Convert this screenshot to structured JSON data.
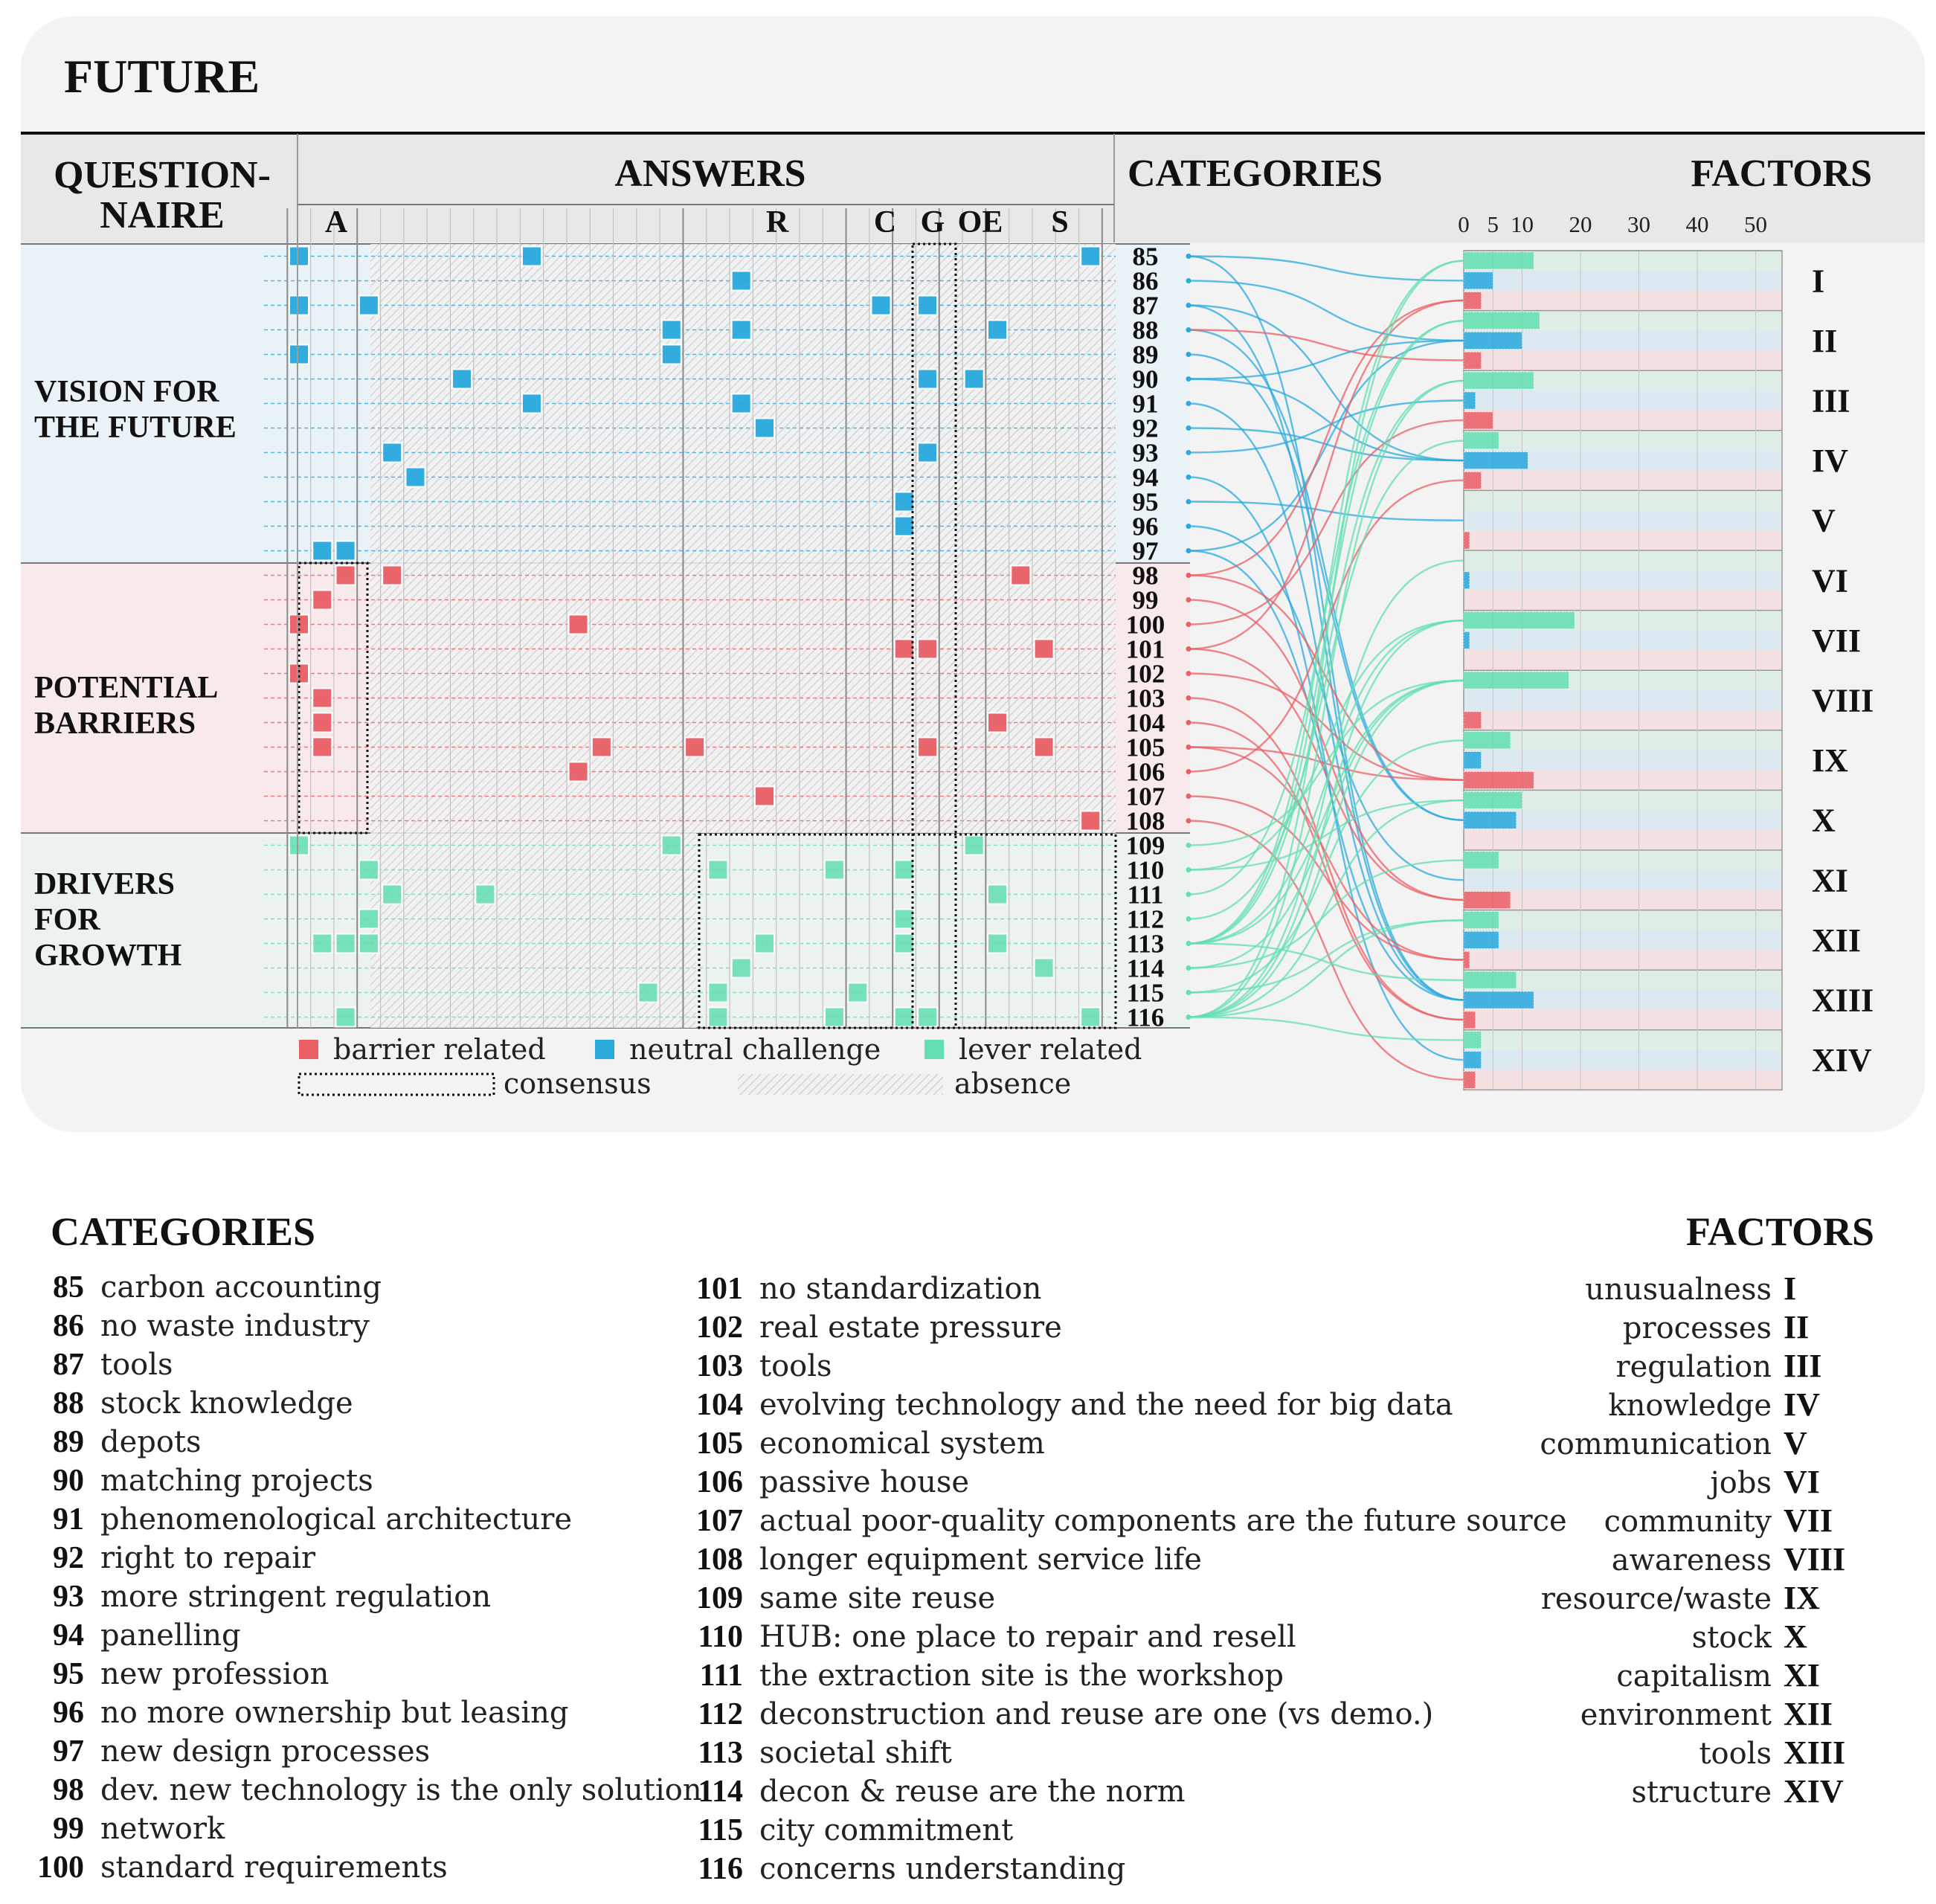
{
  "title": "FUTURE",
  "headers": {
    "questionnaire": [
      "QUESTION-",
      "NAIRE"
    ],
    "answers": "ANSWERS",
    "categories": "CATEGORIES",
    "factors": "FACTORS"
  },
  "answer_groups": [
    "A",
    "R",
    "C",
    "G",
    "OE",
    "S"
  ],
  "sections": [
    {
      "label": [
        "VISION FOR",
        "THE FUTURE"
      ],
      "color": "#e9f2f7"
    },
    {
      "label": [
        "POTENTIAL",
        "BARRIERS"
      ],
      "color": "#f8e9ea"
    },
    {
      "label": [
        "DRIVERS",
        "FOR",
        "GROWTH"
      ],
      "color": "#ecf3ee"
    }
  ],
  "colors": {
    "barrier": "#ea5f66",
    "neutral": "#29a9de",
    "lever": "#63dfb1"
  },
  "legend": {
    "barrier": "barrier related",
    "neutral": "neutral challenge",
    "lever": "lever related",
    "consensus": "consensus",
    "absence": "absence"
  },
  "axis_ticks": [
    "0",
    "5",
    "10",
    "20",
    "30",
    "40",
    "50"
  ],
  "factor_numerals": [
    "I",
    "II",
    "III",
    "IV",
    "V",
    "VI",
    "VII",
    "VIII",
    "IX",
    "X",
    "XI",
    "XII",
    "XIII",
    "XIV"
  ],
  "category_numbers": [
    "85",
    "86",
    "87",
    "88",
    "89",
    "90",
    "91",
    "92",
    "93",
    "94",
    "95",
    "96",
    "97",
    "98",
    "99",
    "100",
    "101",
    "102",
    "103",
    "104",
    "105",
    "106",
    "107",
    "108",
    "109",
    "110",
    "111",
    "112",
    "113",
    "114",
    "115",
    "116"
  ],
  "grid_marks": [
    [
      0,
      0,
      "neutral"
    ],
    [
      0,
      10,
      "neutral"
    ],
    [
      0,
      34,
      "neutral"
    ],
    [
      1,
      19,
      "neutral"
    ],
    [
      2,
      0,
      "neutral"
    ],
    [
      2,
      3,
      "neutral"
    ],
    [
      2,
      25,
      "neutral"
    ],
    [
      2,
      27,
      "neutral"
    ],
    [
      3,
      16,
      "neutral"
    ],
    [
      3,
      19,
      "neutral"
    ],
    [
      3,
      30,
      "neutral"
    ],
    [
      4,
      0,
      "neutral"
    ],
    [
      4,
      16,
      "neutral"
    ],
    [
      5,
      7,
      "neutral"
    ],
    [
      5,
      27,
      "neutral"
    ],
    [
      5,
      29,
      "neutral"
    ],
    [
      6,
      10,
      "neutral"
    ],
    [
      6,
      19,
      "neutral"
    ],
    [
      7,
      20,
      "neutral"
    ],
    [
      8,
      4,
      "neutral"
    ],
    [
      8,
      27,
      "neutral"
    ],
    [
      9,
      5,
      "neutral"
    ],
    [
      10,
      26,
      "neutral"
    ],
    [
      11,
      26,
      "neutral"
    ],
    [
      12,
      1,
      "neutral"
    ],
    [
      12,
      2,
      "neutral"
    ],
    [
      13,
      2,
      "barrier"
    ],
    [
      13,
      4,
      "barrier"
    ],
    [
      13,
      31,
      "barrier"
    ],
    [
      14,
      1,
      "barrier"
    ],
    [
      15,
      0,
      "barrier"
    ],
    [
      15,
      12,
      "barrier"
    ],
    [
      16,
      26,
      "barrier"
    ],
    [
      16,
      27,
      "barrier"
    ],
    [
      16,
      32,
      "barrier"
    ],
    [
      17,
      0,
      "barrier"
    ],
    [
      18,
      1,
      "barrier"
    ],
    [
      19,
      1,
      "barrier"
    ],
    [
      19,
      30,
      "barrier"
    ],
    [
      20,
      1,
      "barrier"
    ],
    [
      20,
      13,
      "barrier"
    ],
    [
      20,
      17,
      "barrier"
    ],
    [
      20,
      27,
      "barrier"
    ],
    [
      20,
      32,
      "barrier"
    ],
    [
      21,
      12,
      "barrier"
    ],
    [
      22,
      20,
      "barrier"
    ],
    [
      23,
      34,
      "barrier"
    ],
    [
      24,
      0,
      "lever"
    ],
    [
      24,
      16,
      "lever"
    ],
    [
      24,
      29,
      "lever"
    ],
    [
      25,
      3,
      "lever"
    ],
    [
      25,
      18,
      "lever"
    ],
    [
      25,
      23,
      "lever"
    ],
    [
      25,
      26,
      "lever"
    ],
    [
      26,
      4,
      "lever"
    ],
    [
      26,
      8,
      "lever"
    ],
    [
      26,
      30,
      "lever"
    ],
    [
      27,
      3,
      "lever"
    ],
    [
      27,
      26,
      "lever"
    ],
    [
      28,
      1,
      "lever"
    ],
    [
      28,
      2,
      "lever"
    ],
    [
      28,
      3,
      "lever"
    ],
    [
      28,
      20,
      "lever"
    ],
    [
      28,
      26,
      "lever"
    ],
    [
      28,
      30,
      "lever"
    ],
    [
      29,
      19,
      "lever"
    ],
    [
      29,
      32,
      "lever"
    ],
    [
      30,
      15,
      "lever"
    ],
    [
      30,
      18,
      "lever"
    ],
    [
      30,
      24,
      "lever"
    ],
    [
      31,
      2,
      "lever"
    ],
    [
      31,
      18,
      "lever"
    ],
    [
      31,
      23,
      "lever"
    ],
    [
      31,
      26,
      "lever"
    ],
    [
      31,
      27,
      "lever"
    ],
    [
      31,
      34,
      "lever"
    ]
  ],
  "flows": [
    [
      0,
      0,
      "neutral"
    ],
    [
      0,
      12,
      "neutral"
    ],
    [
      1,
      1,
      "neutral"
    ],
    [
      2,
      12,
      "neutral"
    ],
    [
      2,
      3,
      "neutral"
    ],
    [
      3,
      9,
      "neutral"
    ],
    [
      3,
      1,
      "barrier"
    ],
    [
      4,
      9,
      "neutral"
    ],
    [
      5,
      1,
      "neutral"
    ],
    [
      5,
      3,
      "neutral"
    ],
    [
      6,
      12,
      "neutral"
    ],
    [
      7,
      3,
      "neutral"
    ],
    [
      8,
      2,
      "neutral"
    ],
    [
      9,
      13,
      "neutral"
    ],
    [
      10,
      4,
      "neutral"
    ],
    [
      11,
      10,
      "neutral"
    ],
    [
      12,
      1,
      "neutral"
    ],
    [
      12,
      12,
      "neutral"
    ],
    [
      13,
      8,
      "barrier"
    ],
    [
      13,
      0,
      "barrier"
    ],
    [
      14,
      10,
      "barrier"
    ],
    [
      15,
      2,
      "barrier"
    ],
    [
      16,
      0,
      "barrier"
    ],
    [
      16,
      10,
      "barrier"
    ],
    [
      17,
      8,
      "barrier"
    ],
    [
      18,
      12,
      "barrier"
    ],
    [
      19,
      12,
      "barrier"
    ],
    [
      20,
      8,
      "barrier"
    ],
    [
      20,
      11,
      "barrier"
    ],
    [
      21,
      3,
      "barrier"
    ],
    [
      22,
      11,
      "barrier"
    ],
    [
      23,
      13,
      "barrier"
    ],
    [
      24,
      7,
      "lever"
    ],
    [
      25,
      6,
      "lever"
    ],
    [
      25,
      9,
      "lever"
    ],
    [
      26,
      1,
      "lever"
    ],
    [
      27,
      3,
      "lever"
    ],
    [
      28,
      0,
      "lever"
    ],
    [
      28,
      1,
      "lever"
    ],
    [
      28,
      2,
      "lever"
    ],
    [
      28,
      6,
      "lever"
    ],
    [
      28,
      7,
      "lever"
    ],
    [
      28,
      12,
      "lever"
    ],
    [
      29,
      7,
      "lever"
    ],
    [
      29,
      10,
      "lever"
    ],
    [
      30,
      8,
      "lever"
    ],
    [
      30,
      11,
      "lever"
    ],
    [
      31,
      0,
      "lever"
    ],
    [
      31,
      2,
      "lever"
    ],
    [
      31,
      5,
      "lever"
    ],
    [
      31,
      6,
      "lever"
    ],
    [
      31,
      7,
      "lever"
    ],
    [
      31,
      9,
      "lever"
    ],
    [
      31,
      11,
      "lever"
    ],
    [
      31,
      13,
      "lever"
    ]
  ],
  "factor_bars": [
    {
      "factor": "I",
      "lever": 12,
      "neutral": 5,
      "barrier": 3
    },
    {
      "factor": "II",
      "lever": 13,
      "neutral": 10,
      "barrier": 3
    },
    {
      "factor": "III",
      "lever": 12,
      "neutral": 2,
      "barrier": 5
    },
    {
      "factor": "IV",
      "lever": 6,
      "neutral": 11,
      "barrier": 3
    },
    {
      "factor": "V",
      "lever": 0,
      "neutral": 0,
      "barrier": 1
    },
    {
      "factor": "VI",
      "lever": 0,
      "neutral": 1,
      "barrier": 0
    },
    {
      "factor": "VII",
      "lever": 19,
      "neutral": 1,
      "barrier": 0
    },
    {
      "factor": "VIII",
      "lever": 18,
      "neutral": 0,
      "barrier": 3
    },
    {
      "factor": "IX",
      "lever": 8,
      "neutral": 3,
      "barrier": 12
    },
    {
      "factor": "X",
      "lever": 10,
      "neutral": 9,
      "barrier": 0
    },
    {
      "factor": "XI",
      "lever": 6,
      "neutral": 0,
      "barrier": 8
    },
    {
      "factor": "XII",
      "lever": 6,
      "neutral": 6,
      "barrier": 1
    },
    {
      "factor": "XIII",
      "lever": 9,
      "neutral": 12,
      "barrier": 2
    },
    {
      "factor": "XIV",
      "lever": 3,
      "neutral": 3,
      "barrier": 2
    }
  ],
  "glossary": {
    "categories_title": "CATEGORIES",
    "factors_title": "FACTORS",
    "col1": [
      {
        "n": "85",
        "t": "carbon accounting"
      },
      {
        "n": "86",
        "t": "no waste industry"
      },
      {
        "n": "87",
        "t": "tools"
      },
      {
        "n": "88",
        "t": "stock knowledge"
      },
      {
        "n": "89",
        "t": "depots"
      },
      {
        "n": "90",
        "t": "matching projects"
      },
      {
        "n": "91",
        "t": "phenomenological architecture"
      },
      {
        "n": "92",
        "t": "right to repair"
      },
      {
        "n": "93",
        "t": "more stringent regulation"
      },
      {
        "n": "94",
        "t": "panelling"
      },
      {
        "n": "95",
        "t": "new profession"
      },
      {
        "n": "96",
        "t": "no more ownership but leasing"
      },
      {
        "n": "97",
        "t": "new design processes"
      },
      {
        "n": "98",
        "t": "dev. new technology is the only solution"
      },
      {
        "n": "99",
        "t": "network"
      },
      {
        "n": "100",
        "t": "standard requirements"
      }
    ],
    "col2": [
      {
        "n": "101",
        "t": "no standardization"
      },
      {
        "n": "102",
        "t": "real estate pressure"
      },
      {
        "n": "103",
        "t": "tools"
      },
      {
        "n": "104",
        "t": "evolving technology and the need for big data"
      },
      {
        "n": "105",
        "t": "economical system"
      },
      {
        "n": "106",
        "t": "passive house"
      },
      {
        "n": "107",
        "t": "actual poor-quality components are the future source"
      },
      {
        "n": "108",
        "t": "longer equipment service life"
      },
      {
        "n": "109",
        "t": "same site reuse"
      },
      {
        "n": "110",
        "t": "HUB: one place to repair and resell"
      },
      {
        "n": "111",
        "t": "the extraction site is the workshop"
      },
      {
        "n": "112",
        "t": "deconstruction and reuse are one (vs demo.)"
      },
      {
        "n": "113",
        "t": "societal shift"
      },
      {
        "n": "114",
        "t": "decon & reuse are the norm"
      },
      {
        "n": "115",
        "t": "city commitment"
      },
      {
        "n": "116",
        "t": "concerns understanding"
      }
    ],
    "factors": [
      {
        "t": "unusualness",
        "r": "I"
      },
      {
        "t": "processes",
        "r": "II"
      },
      {
        "t": "regulation",
        "r": "III"
      },
      {
        "t": "knowledge",
        "r": "IV"
      },
      {
        "t": "communication",
        "r": "V"
      },
      {
        "t": "jobs",
        "r": "VI"
      },
      {
        "t": "community",
        "r": "VII"
      },
      {
        "t": "awareness",
        "r": "VIII"
      },
      {
        "t": "resource/waste",
        "r": "IX"
      },
      {
        "t": "stock",
        "r": "X"
      },
      {
        "t": "capitalism",
        "r": "XI"
      },
      {
        "t": "environment",
        "r": "XII"
      },
      {
        "t": "tools",
        "r": "XIII"
      },
      {
        "t": "structure",
        "r": "XIV"
      }
    ]
  }
}
